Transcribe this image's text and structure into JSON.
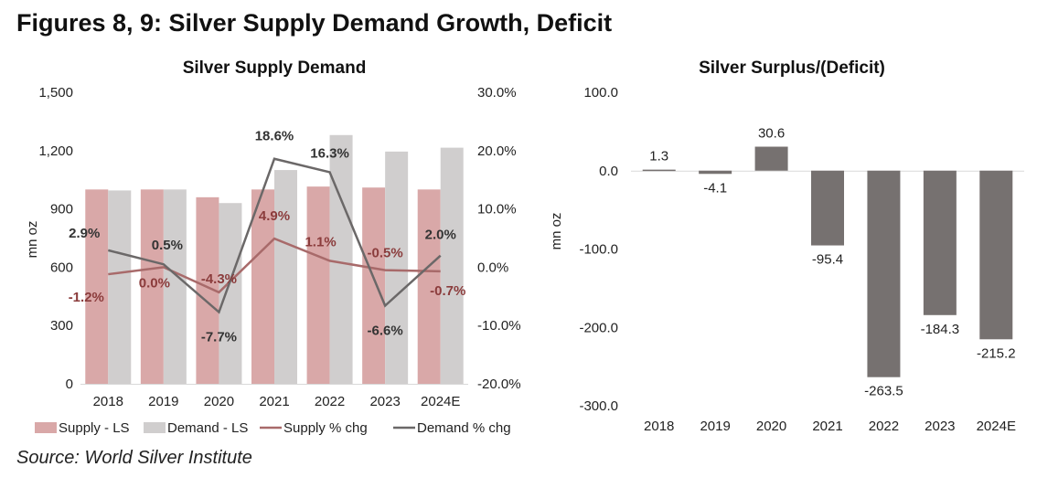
{
  "figure_title": "Figures 8, 9: Silver Supply Demand Growth, Deficit",
  "source": "Source: World Silver Institute",
  "colors": {
    "supply": "#d9a8a8",
    "demand": "#d0cece",
    "supply_line": "#a86a6a",
    "demand_line": "#6b6868",
    "supply_label": "#8b3c3c",
    "demand_label": "#333333",
    "deficit_bar": "#767170"
  },
  "chart_data": [
    {
      "type": "bar",
      "title": "Silver Supply Demand",
      "categories": [
        "2018",
        "2019",
        "2020",
        "2021",
        "2022",
        "2023",
        "2024E"
      ],
      "ylabel": "mn oz",
      "ylim": [
        0,
        1500
      ],
      "yticks": [
        "0",
        "300",
        "600",
        "900",
        "1,200",
        "1,500"
      ],
      "y2lim": [
        -20,
        30
      ],
      "y2ticks": [
        "-20.0%",
        "-10.0%",
        "0.0%",
        "10.0%",
        "20.0%",
        "30.0%"
      ],
      "series": [
        {
          "name": "Supply - LS",
          "kind": "bar",
          "axis": "left",
          "values": [
            1000,
            1000,
            960,
            1000,
            1015,
            1010,
            1000
          ]
        },
        {
          "name": "Demand - LS",
          "kind": "bar",
          "axis": "left",
          "values": [
            995,
            1000,
            930,
            1100,
            1280,
            1195,
            1215
          ]
        },
        {
          "name": "Supply % chg",
          "kind": "line",
          "axis": "right",
          "values": [
            -1.2,
            0.0,
            -4.3,
            4.9,
            1.1,
            -0.5,
            -0.7
          ],
          "labels": [
            "-1.2%",
            "0.0%",
            "-4.3%",
            "4.9%",
            "1.1%",
            "-0.5%",
            "-0.7%"
          ]
        },
        {
          "name": "Demand % chg",
          "kind": "line",
          "axis": "right",
          "values": [
            2.9,
            0.5,
            -7.7,
            18.6,
            16.3,
            -6.6,
            2.0
          ],
          "labels": [
            "2.9%",
            "0.5%",
            "-7.7%",
            "18.6%",
            "16.3%",
            "-6.6%",
            "2.0%"
          ]
        }
      ],
      "legend": "bottom",
      "grid": false
    },
    {
      "type": "bar",
      "title": "Silver Surplus/(Deficit)",
      "categories": [
        "2018",
        "2019",
        "2020",
        "2021",
        "2022",
        "2023",
        "2024E"
      ],
      "ylabel": "mn oz",
      "ylim": [
        -300,
        100
      ],
      "yticks": [
        "-300.0",
        "-200.0",
        "-100.0",
        "0.0",
        "100.0"
      ],
      "values": [
        1.3,
        -4.1,
        30.6,
        -95.4,
        -263.5,
        -184.3,
        -215.2
      ],
      "labels": [
        "1.3",
        "-4.1",
        "30.6",
        "-95.4",
        "-263.5",
        "-184.3",
        "-215.2"
      ],
      "grid": false
    }
  ]
}
